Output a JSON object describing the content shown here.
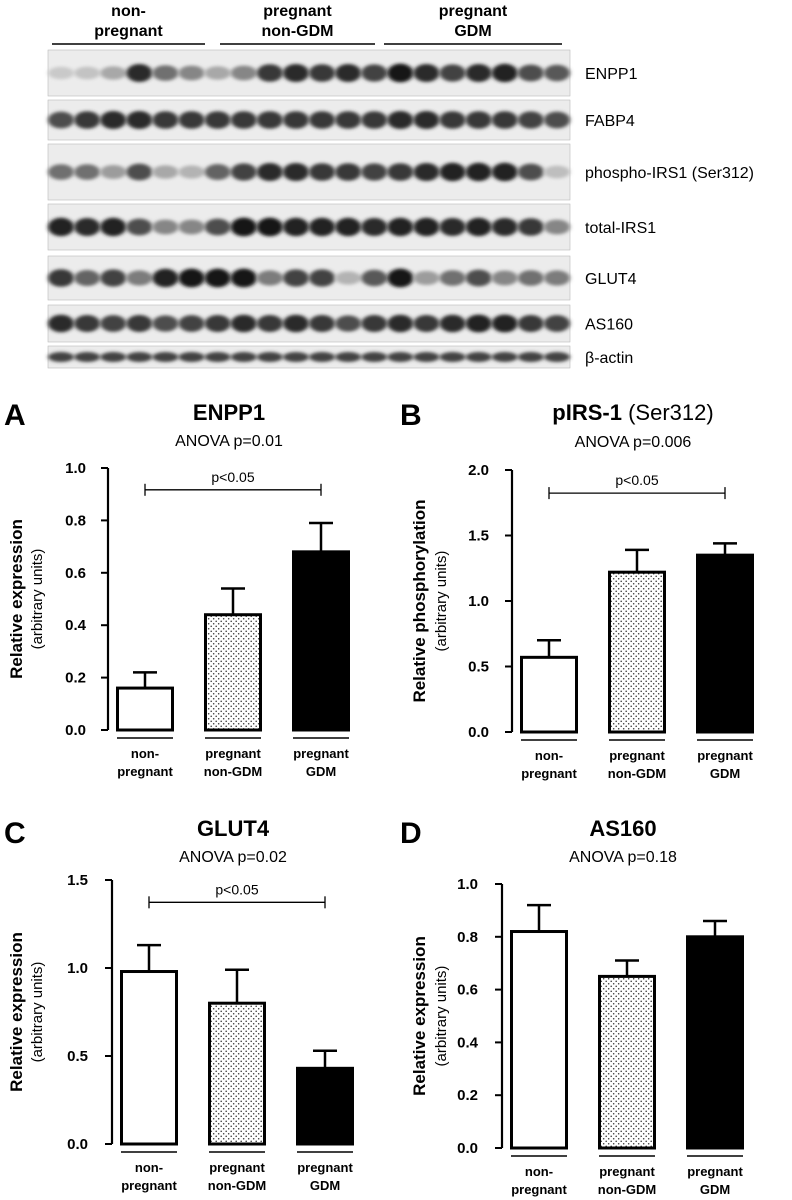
{
  "blot": {
    "groups": [
      {
        "label": [
          "non-",
          "pregnant"
        ]
      },
      {
        "label": [
          "pregnant",
          "non-GDM"
        ]
      },
      {
        "label": [
          "pregnant",
          "GDM"
        ]
      }
    ],
    "rows": [
      {
        "label": "ENPP1",
        "intensities": [
          0.15,
          0.18,
          0.3,
          0.85,
          0.55,
          0.45,
          0.3,
          0.45,
          0.8,
          0.85,
          0.8,
          0.85,
          0.75,
          0.95,
          0.85,
          0.75,
          0.85,
          0.9,
          0.7,
          0.65
        ]
      },
      {
        "label": "FABP4",
        "intensities": [
          0.7,
          0.8,
          0.85,
          0.85,
          0.8,
          0.8,
          0.8,
          0.8,
          0.8,
          0.8,
          0.8,
          0.8,
          0.8,
          0.85,
          0.85,
          0.8,
          0.8,
          0.8,
          0.75,
          0.7
        ]
      },
      {
        "label": "phospho-IRS1 (Ser312)",
        "intensities": [
          0.55,
          0.55,
          0.35,
          0.7,
          0.3,
          0.25,
          0.6,
          0.75,
          0.85,
          0.85,
          0.8,
          0.8,
          0.75,
          0.8,
          0.85,
          0.9,
          0.9,
          0.9,
          0.7,
          0.2
        ]
      },
      {
        "label": "total-IRS1",
        "intensities": [
          0.9,
          0.85,
          0.9,
          0.7,
          0.45,
          0.45,
          0.7,
          0.95,
          0.95,
          0.9,
          0.9,
          0.9,
          0.85,
          0.9,
          0.9,
          0.85,
          0.9,
          0.85,
          0.8,
          0.45
        ]
      },
      {
        "label": "GLUT4",
        "intensities": [
          0.8,
          0.6,
          0.75,
          0.5,
          0.9,
          0.95,
          0.95,
          0.95,
          0.5,
          0.75,
          0.75,
          0.25,
          0.65,
          0.95,
          0.35,
          0.55,
          0.7,
          0.45,
          0.55,
          0.5
        ]
      },
      {
        "label": "AS160",
        "intensities": [
          0.85,
          0.8,
          0.75,
          0.8,
          0.7,
          0.75,
          0.8,
          0.85,
          0.8,
          0.85,
          0.8,
          0.7,
          0.8,
          0.85,
          0.8,
          0.85,
          0.9,
          0.9,
          0.8,
          0.75
        ]
      },
      {
        "label": "β-actin",
        "intensities": [
          0.75,
          0.75,
          0.75,
          0.75,
          0.75,
          0.75,
          0.75,
          0.75,
          0.75,
          0.75,
          0.75,
          0.75,
          0.75,
          0.75,
          0.75,
          0.75,
          0.75,
          0.75,
          0.75,
          0.75
        ]
      }
    ]
  },
  "chart_data": [
    {
      "panel": "A",
      "type": "bar",
      "title": "ENPP1",
      "subtitle": "ANOVA p=0.01",
      "ylabel": "Relative expression",
      "ylabel2": "(arbitrary units)",
      "categories": [
        [
          "non-",
          "pregnant"
        ],
        [
          "pregnant",
          "non-GDM"
        ],
        [
          "pregnant",
          "GDM"
        ]
      ],
      "values": [
        0.16,
        0.44,
        0.68
      ],
      "errors": [
        0.06,
        0.1,
        0.11
      ],
      "fills": [
        "white",
        "dots",
        "black"
      ],
      "ylim": [
        0,
        1.0
      ],
      "yticks": [
        0,
        0.2,
        0.4,
        0.6,
        0.8,
        1.0
      ],
      "ytick_labels": [
        "0.0",
        "0.2",
        "0.4",
        "0.6",
        "0.8",
        "1.0"
      ],
      "significance": {
        "from": 0,
        "to": 2,
        "label": "p<0.05",
        "y": 0.955
      }
    },
    {
      "panel": "B",
      "type": "bar",
      "title": "pIRS-1",
      "title_suffix": " (Ser312)",
      "subtitle": "ANOVA p=0.006",
      "ylabel": "Relative phosphorylation",
      "ylabel2": "(arbitrary units)",
      "categories": [
        [
          "non-",
          "pregnant"
        ],
        [
          "pregnant",
          "non-GDM"
        ],
        [
          "pregnant",
          "GDM"
        ]
      ],
      "values": [
        0.57,
        1.22,
        1.35
      ],
      "errors": [
        0.13,
        0.17,
        0.09
      ],
      "fills": [
        "white",
        "dots",
        "black"
      ],
      "ylim": [
        0,
        2.0
      ],
      "yticks": [
        0,
        0.5,
        1.0,
        1.5,
        2.0
      ],
      "ytick_labels": [
        "0.0",
        "0.5",
        "1.0",
        "1.5",
        "2.0"
      ],
      "significance": {
        "from": 0,
        "to": 2,
        "label": "p<0.05",
        "y": 1.9
      }
    },
    {
      "panel": "C",
      "type": "bar",
      "title": "GLUT4",
      "subtitle": "ANOVA p=0.02",
      "ylabel": "Relative expression",
      "ylabel2": "(arbitrary units)",
      "categories": [
        [
          "non-",
          "pregnant"
        ],
        [
          "pregnant",
          "non-GDM"
        ],
        [
          "pregnant",
          "GDM"
        ]
      ],
      "values": [
        0.98,
        0.8,
        0.43
      ],
      "errors": [
        0.15,
        0.19,
        0.1
      ],
      "fills": [
        "white",
        "dots",
        "black"
      ],
      "ylim": [
        0,
        1.5
      ],
      "yticks": [
        0,
        0.5,
        1.0,
        1.5
      ],
      "ytick_labels": [
        "0.0",
        "0.5",
        "1.0",
        "1.5"
      ],
      "significance": {
        "from": 0,
        "to": 2,
        "label": "p<0.05",
        "y": 1.43
      }
    },
    {
      "panel": "D",
      "type": "bar",
      "title": "AS160",
      "subtitle": "ANOVA p=0.18",
      "ylabel": "Relative expression",
      "ylabel2": "(arbitrary units)",
      "categories": [
        [
          "non-",
          "pregnant"
        ],
        [
          "pregnant",
          "non-GDM"
        ],
        [
          "pregnant",
          "GDM"
        ]
      ],
      "values": [
        0.82,
        0.65,
        0.8
      ],
      "errors": [
        0.1,
        0.06,
        0.06
      ],
      "fills": [
        "white",
        "dots",
        "black"
      ],
      "ylim": [
        0,
        1.0
      ],
      "yticks": [
        0,
        0.2,
        0.4,
        0.6,
        0.8,
        1.0
      ],
      "ytick_labels": [
        "0.0",
        "0.2",
        "0.4",
        "0.6",
        "0.8",
        "1.0"
      ],
      "significance": null
    }
  ]
}
